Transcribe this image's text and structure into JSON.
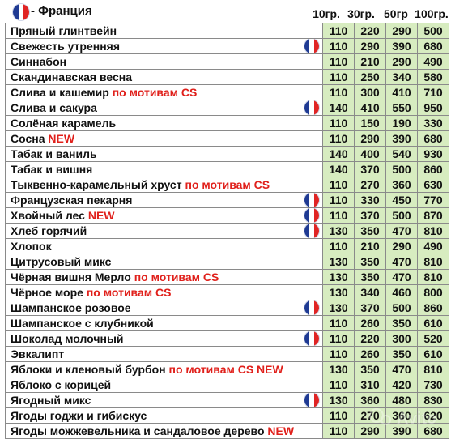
{
  "header": {
    "country": "- Франция",
    "flag_icon": "france-flag-icon",
    "columns": [
      "10гр.",
      "30гр.",
      "50гр",
      "100гр."
    ]
  },
  "colors": {
    "price_bg": "#d7ecc0",
    "tag_color": "#e0201b"
  },
  "rows": [
    {
      "name": "Пряный глинтвейн",
      "tag": "",
      "flag": false,
      "p10": "110",
      "p30": "220",
      "p50": "290",
      "p100": "500"
    },
    {
      "name": "Свежесть утренняя",
      "tag": "",
      "flag": true,
      "p10": "110",
      "p30": "290",
      "p50": "390",
      "p100": "680"
    },
    {
      "name": "Синнабон",
      "tag": "",
      "flag": false,
      "p10": "110",
      "p30": "210",
      "p50": "290",
      "p100": "490"
    },
    {
      "name": "Скандинавская весна",
      "tag": "",
      "flag": false,
      "p10": "110",
      "p30": "250",
      "p50": "340",
      "p100": "580"
    },
    {
      "name": "Слива и кашемир",
      "tag": "по мотивам CS",
      "flag": false,
      "p10": "110",
      "p30": "300",
      "p50": "410",
      "p100": "710"
    },
    {
      "name": "Слива и сакура",
      "tag": "",
      "flag": true,
      "p10": "140",
      "p30": "410",
      "p50": "550",
      "p100": "950"
    },
    {
      "name": "Солёная карамель",
      "tag": "",
      "flag": false,
      "p10": "110",
      "p30": "150",
      "p50": "190",
      "p100": "330"
    },
    {
      "name": "Сосна",
      "tag": "NEW",
      "flag": false,
      "p10": "110",
      "p30": "290",
      "p50": "390",
      "p100": "680"
    },
    {
      "name": "Табак и ваниль",
      "tag": "",
      "flag": false,
      "p10": "140",
      "p30": "400",
      "p50": "540",
      "p100": "930"
    },
    {
      "name": "Табак и вишня",
      "tag": "",
      "flag": false,
      "p10": "140",
      "p30": "370",
      "p50": "500",
      "p100": "860"
    },
    {
      "name": "Тыквенно-карамельный хруст",
      "tag": "по мотивам CS",
      "flag": false,
      "p10": "110",
      "p30": "270",
      "p50": "360",
      "p100": "630"
    },
    {
      "name": "Французская пекарня",
      "tag": "",
      "flag": true,
      "p10": "110",
      "p30": "330",
      "p50": "450",
      "p100": "770"
    },
    {
      "name": "Хвойный лес",
      "tag": "NEW",
      "flag": true,
      "p10": "110",
      "p30": "370",
      "p50": "500",
      "p100": "870"
    },
    {
      "name": "Хлеб горячий",
      "tag": "",
      "flag": true,
      "p10": "130",
      "p30": "350",
      "p50": "470",
      "p100": "810"
    },
    {
      "name": "Хлопок",
      "tag": "",
      "flag": false,
      "p10": "110",
      "p30": "210",
      "p50": "290",
      "p100": "490"
    },
    {
      "name": "Цитрусовый микс",
      "tag": "",
      "flag": false,
      "p10": "130",
      "p30": "350",
      "p50": "470",
      "p100": "810"
    },
    {
      "name": "Чёрная вишня Мерло",
      "tag": "по мотивам CS",
      "flag": false,
      "p10": "130",
      "p30": "350",
      "p50": "470",
      "p100": "810"
    },
    {
      "name": "Чёрное море",
      "tag": "по мотивам CS",
      "flag": false,
      "p10": "130",
      "p30": "340",
      "p50": "460",
      "p100": "800"
    },
    {
      "name": "Шампанское розовое",
      "tag": "",
      "flag": true,
      "p10": "130",
      "p30": "370",
      "p50": "500",
      "p100": "860"
    },
    {
      "name": "Шампанское с клубникой",
      "tag": "",
      "flag": false,
      "p10": "110",
      "p30": "260",
      "p50": "350",
      "p100": "610"
    },
    {
      "name": "Шоколад молочный",
      "tag": "",
      "flag": true,
      "p10": "110",
      "p30": "220",
      "p50": "300",
      "p100": "520"
    },
    {
      "name": "Эвкалипт",
      "tag": "",
      "flag": false,
      "p10": "110",
      "p30": "260",
      "p50": "350",
      "p100": "610"
    },
    {
      "name": "Яблоки и кленовый бурбон",
      "tag": "по мотивам CS NEW",
      "flag": false,
      "p10": "130",
      "p30": "350",
      "p50": "470",
      "p100": "810"
    },
    {
      "name": "Яблоко с корицей",
      "tag": "",
      "flag": false,
      "p10": "110",
      "p30": "310",
      "p50": "420",
      "p100": "730"
    },
    {
      "name": "Ягодный микс",
      "tag": "",
      "flag": true,
      "p10": "130",
      "p30": "360",
      "p50": "480",
      "p100": "830"
    },
    {
      "name": "Ягоды годжи и гибискус",
      "tag": "",
      "flag": false,
      "p10": "110",
      "p30": "270",
      "p50": "360",
      "p100": "620"
    },
    {
      "name": "Ягоды можжевельника и сандаловое дерево",
      "tag": "NEW",
      "flag": false,
      "p10": "110",
      "p30": "290",
      "p50": "390",
      "p100": "680"
    }
  ],
  "watermark": {
    "text": "Avito",
    "icon": "avito-logo-icon"
  }
}
